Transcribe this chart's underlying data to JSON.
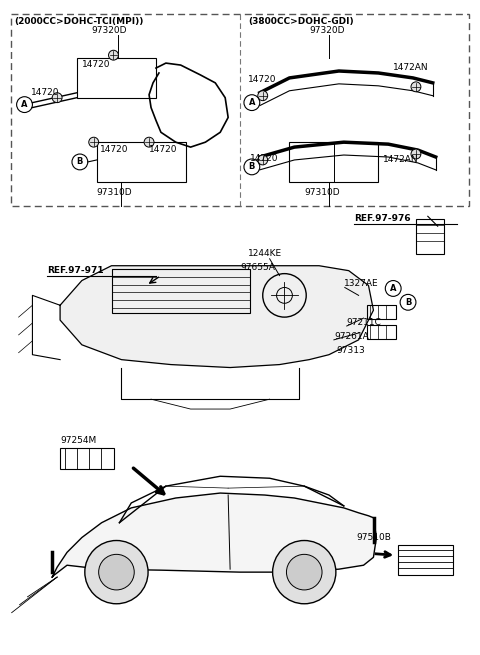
{
  "bg_color": "#ffffff",
  "line_color": "#000000",
  "text_color": "#000000",
  "left_box_label": "(2000CC>DOHC-TCI(MPI))",
  "right_box_label": "(3800CC>DOHC-GDI)",
  "ref_971": "REF.97-971",
  "ref_976": "REF.97-976"
}
